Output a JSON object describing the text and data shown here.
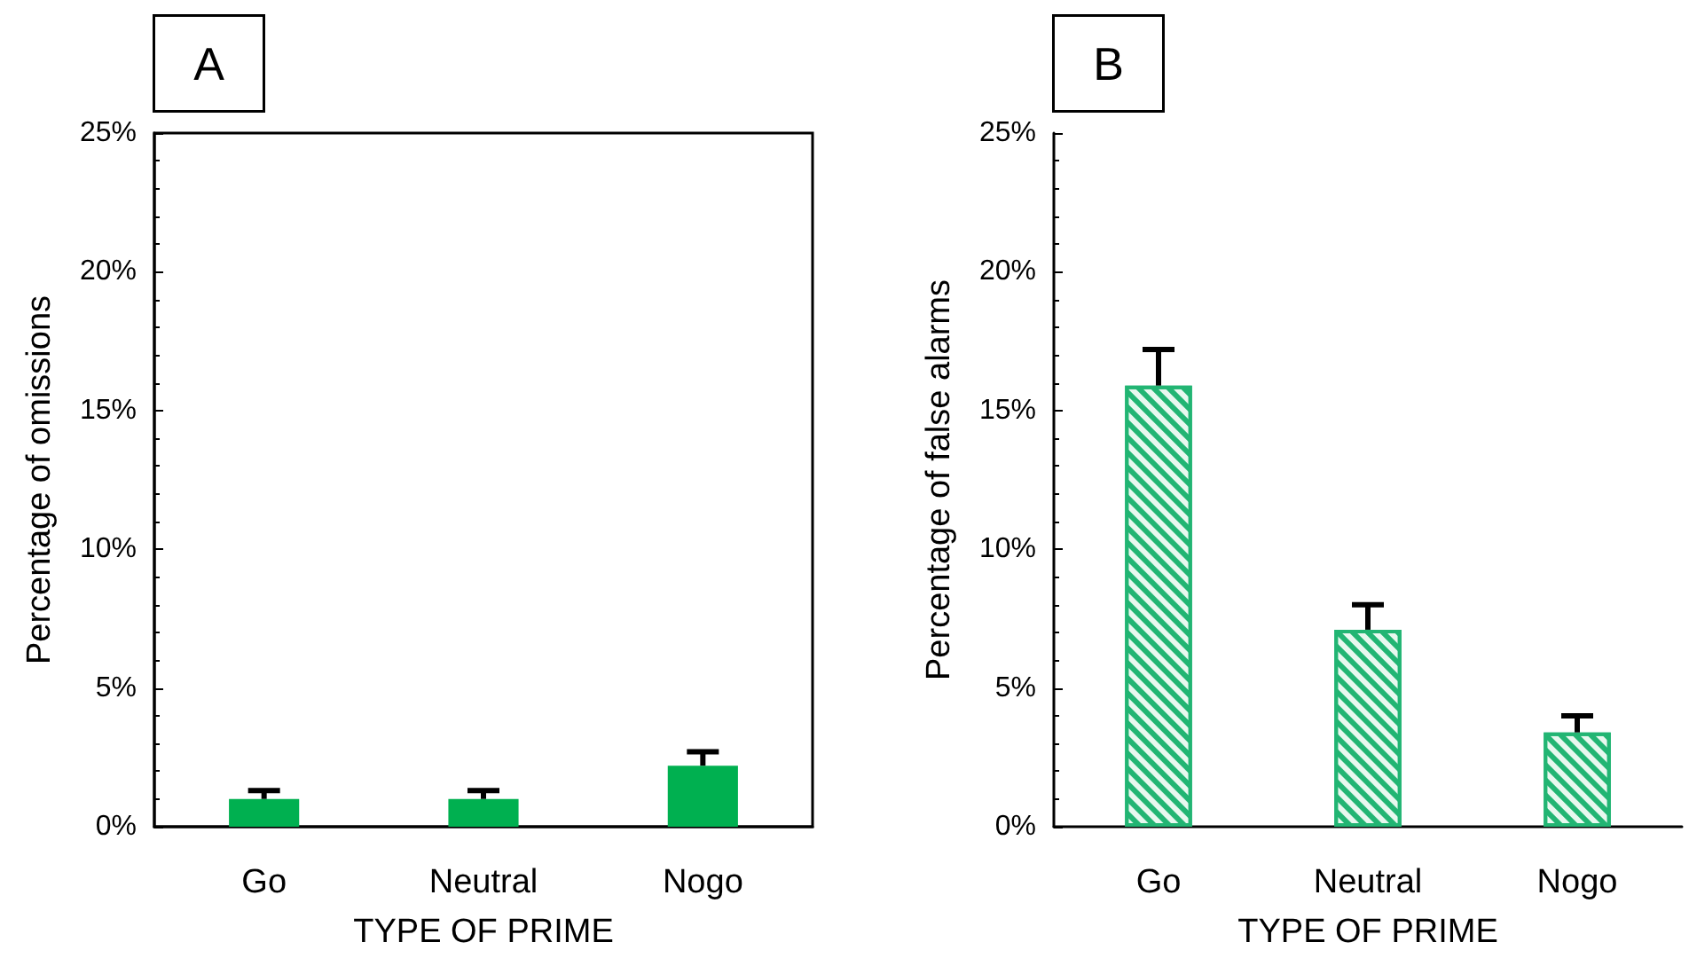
{
  "chart_data": [
    {
      "type": "bar",
      "annotations": [
        "A"
      ],
      "xlabel": "TYPE OF PRIME",
      "ylabel": "Percentage of omissions",
      "categories": [
        "Go",
        "Neutral",
        "Nogo"
      ],
      "values": [
        1.0,
        1.0,
        2.2
      ],
      "errors": [
        [
          1.0,
          1.3
        ],
        [
          1.0,
          1.3
        ],
        [
          2.2,
          2.7
        ]
      ],
      "color": "#00b050",
      "ylim": [
        0,
        25
      ],
      "yticks": [
        {
          "value": 0,
          "label": "0%"
        },
        {
          "value": 5,
          "label": "5%"
        },
        {
          "value": 10,
          "label": "10%"
        },
        {
          "value": 15,
          "label": "15%"
        },
        {
          "value": 20,
          "label": "20%"
        },
        {
          "value": 25,
          "label": "25%"
        }
      ]
    },
    {
      "type": "bar",
      "annotations": [
        "B"
      ],
      "xlabel": "TYPE OF PRIME",
      "ylabel": "Percentage of false alarms",
      "categories": [
        "Go",
        "Neutral",
        "Nogo"
      ],
      "values": [
        15.9,
        7.1,
        3.4
      ],
      "errors": [
        [
          15.9,
          17.2
        ],
        [
          7.1,
          8.0
        ],
        [
          3.4,
          4.0
        ]
      ],
      "color": "#22b573",
      "ylim": [
        0,
        25
      ],
      "yticks": [
        {
          "value": 0,
          "label": "0%"
        },
        {
          "value": 5,
          "label": "5%"
        },
        {
          "value": 10,
          "label": "10%"
        },
        {
          "value": 15,
          "label": "15%"
        },
        {
          "value": 20,
          "label": "20%"
        },
        {
          "value": 25,
          "label": "25%"
        }
      ]
    }
  ]
}
